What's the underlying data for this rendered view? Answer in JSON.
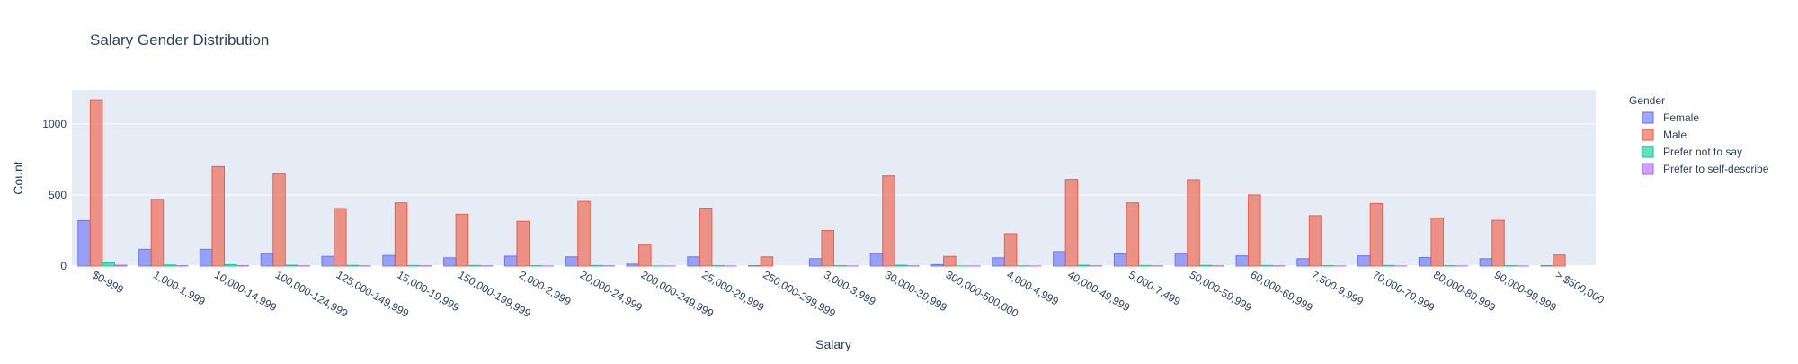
{
  "chart_data": {
    "type": "bar",
    "title": "Salary Gender Distribution",
    "xlabel": "Salary",
    "ylabel": "Count",
    "ylim": [
      0,
      1240
    ],
    "yticks": [
      0,
      500,
      1000
    ],
    "grid": true,
    "legend_title": "Gender",
    "legend_position": "right",
    "categories": [
      "$0-999",
      "1,000-1,999",
      "10,000-14,999",
      "100,000-124,999",
      "125,000-149,999",
      "15,000-19,999",
      "150,000-199,999",
      "2,000-2,999",
      "20,000-24,999",
      "200,000-249,999",
      "25,000-29,999",
      "250,000-299,999",
      "3,000-3,999",
      "30,000-39,999",
      "300,000-500,000",
      "4,000-4,999",
      "40,000-49,999",
      "5,000-7,499",
      "50,000-59,999",
      "60,000-69,999",
      "7,500-9,999",
      "70,000-79,999",
      "80,000-89,999",
      "90,000-99,999",
      "> $500,000"
    ],
    "series": [
      {
        "name": "Female",
        "color": "#636efa",
        "values": [
          320,
          118,
          118,
          88,
          68,
          75,
          58,
          70,
          65,
          14,
          65,
          3,
          52,
          88,
          10,
          58,
          102,
          85,
          88,
          72,
          52,
          72,
          60,
          52,
          3
        ]
      },
      {
        "name": "Male",
        "color": "#ef553b",
        "values": [
          1170,
          470,
          700,
          650,
          405,
          445,
          365,
          315,
          455,
          148,
          408,
          65,
          250,
          635,
          68,
          228,
          610,
          445,
          608,
          500,
          355,
          440,
          338,
          322,
          78
        ]
      },
      {
        "name": "Prefer not to say",
        "color": "#00cc96",
        "values": [
          22,
          8,
          10,
          6,
          5,
          4,
          4,
          3,
          4,
          1,
          3,
          0,
          3,
          6,
          1,
          2,
          6,
          4,
          5,
          4,
          3,
          4,
          3,
          3,
          0
        ]
      },
      {
        "name": "Prefer to self-describe",
        "color": "#ab63fa",
        "values": [
          6,
          3,
          3,
          2,
          2,
          2,
          2,
          1,
          2,
          1,
          1,
          0,
          1,
          2,
          1,
          1,
          2,
          2,
          2,
          2,
          1,
          1,
          1,
          1,
          0
        ]
      }
    ]
  }
}
